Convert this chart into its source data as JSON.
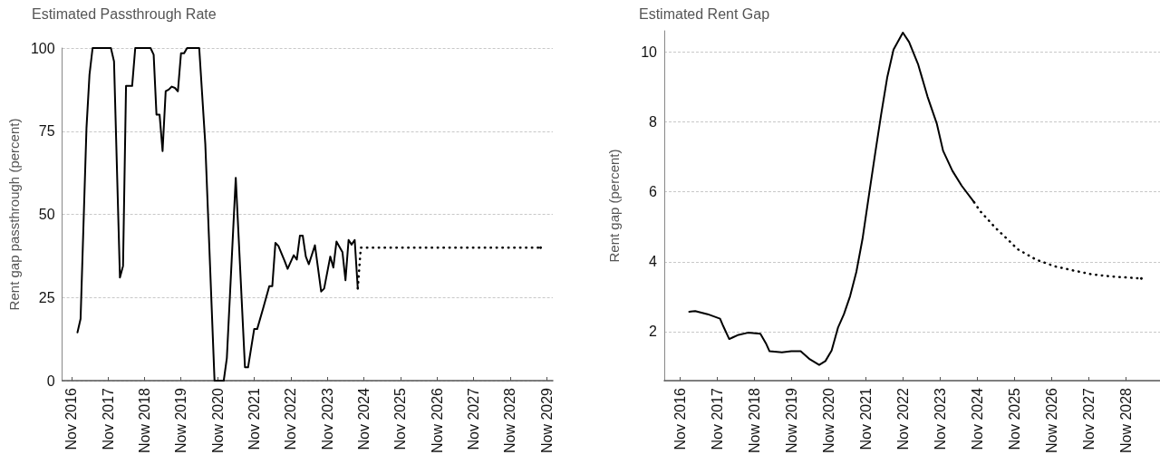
{
  "chart_data": [
    {
      "type": "line",
      "title": "Estimated Passthrough Rate",
      "ylabel": "Rent gap passthrough (percent)",
      "xlim": [
        "2016-08",
        "2030-01"
      ],
      "ylim": [
        0,
        100
      ],
      "yticks": [
        0,
        25,
        50,
        75,
        100
      ],
      "xticks": [
        {
          "value": "2016-11",
          "label": "Nov 2016"
        },
        {
          "value": "2017-11",
          "label": "Nov 2017"
        },
        {
          "value": "2018-11",
          "label": "Now 2018"
        },
        {
          "value": "2019-11",
          "label": "Now 2019"
        },
        {
          "value": "2020-11",
          "label": "Now 2020"
        },
        {
          "value": "2021-11",
          "label": "Nov 2021"
        },
        {
          "value": "2022-11",
          "label": "Nov 2022"
        },
        {
          "value": "2023-11",
          "label": "Nov 2023"
        },
        {
          "value": "2024-11",
          "label": "Nov 2024"
        },
        {
          "value": "2025-11",
          "label": "Nov 2025"
        },
        {
          "value": "2026-11",
          "label": "Now 2026"
        },
        {
          "value": "2027-11",
          "label": "Nov 2027"
        },
        {
          "value": "2028-11",
          "label": "Now 2028"
        },
        {
          "value": "2029-11",
          "label": "Now 2029"
        }
      ],
      "grid": "y",
      "series": [
        {
          "color": "#000000",
          "line_style": "solid",
          "x": [
            "2017-01",
            "2017-02",
            "2017-04",
            "2017-05",
            "2017-06",
            "2017-12",
            "2018-01",
            "2018-03",
            "2018-04",
            "2018-05",
            "2018-07",
            "2018-08",
            "2019-01",
            "2019-02",
            "2019-03",
            "2019-04",
            "2019-05",
            "2019-06",
            "2019-07",
            "2019-08",
            "2019-09",
            "2019-10",
            "2019-11",
            "2019-12",
            "2020-01",
            "2020-05",
            "2020-07",
            "2020-10",
            "2021-01",
            "2021-02",
            "2021-05",
            "2021-08",
            "2021-09",
            "2021-11",
            "2021-12",
            "2022-02",
            "2022-04",
            "2022-05",
            "2022-06",
            "2022-07",
            "2022-09",
            "2022-10",
            "2022-12",
            "2023-01",
            "2023-02",
            "2023-03",
            "2023-04",
            "2023-05",
            "2023-07",
            "2023-09",
            "2023-10",
            "2023-12",
            "2024-01",
            "2024-02",
            "2024-04",
            "2024-05",
            "2024-06",
            "2024-07",
            "2024-08",
            "2024-09"
          ],
          "values": [
            14.5,
            18.6,
            76,
            92,
            100,
            100,
            96,
            31,
            34.5,
            88.6,
            88.6,
            100,
            100,
            98,
            80,
            80,
            69,
            87,
            87.5,
            88.4,
            88,
            87,
            98.4,
            98.4,
            100,
            100,
            71,
            0,
            0,
            6.8,
            61,
            4,
            4,
            15.5,
            15.5,
            22,
            28.4,
            28.4,
            41.4,
            40.5,
            36,
            33.6,
            37.7,
            36.4,
            43.6,
            43.6,
            37.3,
            35,
            40.7,
            26.8,
            27.7,
            37.3,
            34,
            41.8,
            38.6,
            30.2,
            42.3,
            40.9,
            42.3,
            27.7
          ]
        },
        {
          "color": "#000000",
          "line_style": "dotted",
          "x": [
            "2024-09",
            "2024-10",
            "2029-09"
          ],
          "values": [
            27.7,
            40,
            40
          ]
        }
      ]
    },
    {
      "type": "line",
      "title": "Estimated Rent Gap",
      "ylabel": "Rent gap (percent)",
      "xlim": [
        "2016-06",
        "2029-10"
      ],
      "ylim": [
        0.6,
        10.6
      ],
      "yticks": [
        2,
        4,
        6,
        8,
        10
      ],
      "xticks": [
        {
          "value": "2016-11",
          "label": "Nov 2016"
        },
        {
          "value": "2017-11",
          "label": "Nov 2017"
        },
        {
          "value": "2018-11",
          "label": "Now 2018"
        },
        {
          "value": "2019-11",
          "label": "Now 2019"
        },
        {
          "value": "2020-11",
          "label": "Now 2020"
        },
        {
          "value": "2021-11",
          "label": "Nov 2021"
        },
        {
          "value": "2022-11",
          "label": "Nov 2022"
        },
        {
          "value": "2023-11",
          "label": "Nov 2023"
        },
        {
          "value": "2024-11",
          "label": "Nov 2024"
        },
        {
          "value": "2025-11",
          "label": "Nov 2025"
        },
        {
          "value": "2026-11",
          "label": "Now 2026"
        },
        {
          "value": "2027-11",
          "label": "Nov 2027"
        },
        {
          "value": "2028-11",
          "label": "Now 2028"
        }
      ],
      "grid": "y",
      "series": [
        {
          "color": "#000000",
          "line_style": "solid",
          "x": [
            "2017-02",
            "2017-04",
            "2017-08",
            "2017-12",
            "2018-01",
            "2018-03",
            "2018-04",
            "2018-06",
            "2018-09",
            "2019-01",
            "2019-03",
            "2019-04",
            "2019-08",
            "2019-11",
            "2020-02",
            "2020-05",
            "2020-08",
            "2020-10",
            "2020-12",
            "2021-02",
            "2021-04",
            "2021-06",
            "2021-08",
            "2021-10",
            "2021-12",
            "2022-02",
            "2022-04",
            "2022-06",
            "2022-08",
            "2022-11",
            "2023-01",
            "2023-04",
            "2023-07",
            "2023-10",
            "2023-12",
            "2024-03",
            "2024-06",
            "2024-10"
          ],
          "values": [
            2.57,
            2.59,
            2.5,
            2.37,
            2.16,
            1.79,
            1.83,
            1.91,
            1.97,
            1.94,
            1.64,
            1.44,
            1.41,
            1.44,
            1.44,
            1.21,
            1.05,
            1.16,
            1.46,
            2.11,
            2.5,
            3.02,
            3.71,
            4.66,
            5.87,
            7.08,
            8.2,
            9.28,
            10.06,
            10.55,
            10.28,
            9.63,
            8.72,
            7.94,
            7.17,
            6.6,
            6.17,
            5.7
          ]
        },
        {
          "color": "#000000",
          "line_style": "dotted",
          "x": [
            "2024-10",
            "2024-12",
            "2025-05",
            "2025-09",
            "2025-12",
            "2026-06",
            "2026-12",
            "2027-06",
            "2027-12",
            "2028-06",
            "2029-04"
          ],
          "values": [
            5.7,
            5.44,
            4.96,
            4.62,
            4.36,
            4.06,
            3.87,
            3.75,
            3.64,
            3.58,
            3.52
          ]
        }
      ]
    }
  ]
}
